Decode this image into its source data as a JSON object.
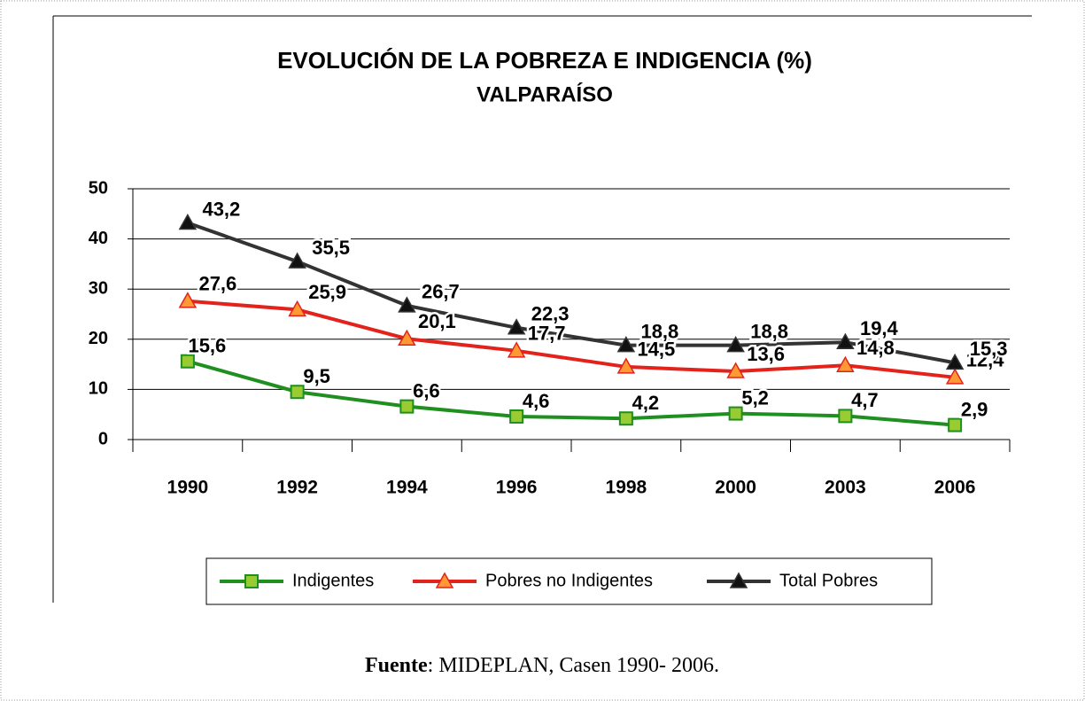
{
  "chart_data": {
    "type": "line",
    "title": "EVOLUCIÓN DE LA POBREZA E INDIGENCIA  (%)",
    "subtitle": "VALPARAÍSO",
    "categories": [
      "1990",
      "1992",
      "1994",
      "1996",
      "1998",
      "2000",
      "2003",
      "2006"
    ],
    "series": [
      {
        "name": "Indigentes",
        "color": "#1f8f1f",
        "marker_color": "#99cc33",
        "marker": "square",
        "values": [
          15.6,
          9.5,
          6.6,
          4.6,
          4.2,
          5.2,
          4.7,
          2.9
        ],
        "value_labels": [
          "15,6",
          "9,5",
          "6,6",
          "4,6",
          "4,2",
          "5,2",
          "4,7",
          "2,9"
        ]
      },
      {
        "name": "Pobres no Indigentes",
        "color": "#e3231b",
        "marker_color": "#ff9933",
        "marker": "triangle",
        "values": [
          27.6,
          25.9,
          20.1,
          17.7,
          14.5,
          13.6,
          14.8,
          12.4
        ],
        "value_labels": [
          "27,6",
          "25,9",
          "20,1",
          "17,7",
          "14,5",
          "13,6",
          "14,8",
          "12,4"
        ]
      },
      {
        "name": "Total Pobres",
        "color": "#333333",
        "marker_color": "#111111",
        "marker": "triangle",
        "values": [
          43.2,
          35.5,
          26.7,
          22.3,
          18.8,
          18.8,
          19.4,
          15.3
        ],
        "value_labels": [
          "43,2",
          "35,5",
          "26,7",
          "22,3",
          "18,8",
          "18,8",
          "19,4",
          "15,3"
        ]
      }
    ],
    "ylim": [
      0,
      50
    ],
    "yticks": [
      0,
      10,
      20,
      30,
      40,
      50
    ],
    "grid": true,
    "legend": "bottom"
  },
  "source": {
    "label": "Fuente",
    "text": ": MIDEPLAN, Casen 1990- 2006."
  }
}
